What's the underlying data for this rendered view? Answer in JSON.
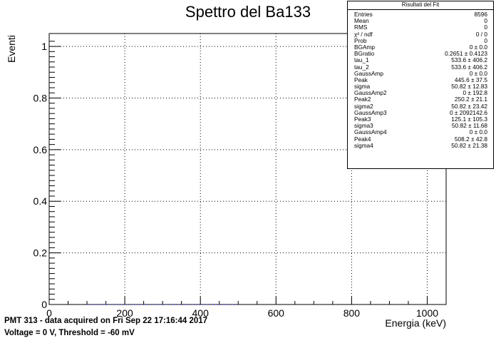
{
  "chart_data": {
    "type": "line",
    "title": "Spettro del Ba133",
    "xlabel": "Energia (keV)",
    "ylabel": "Eventi",
    "xlim": [
      0,
      1050
    ],
    "ylim": [
      0,
      1.05
    ],
    "x_ticks": [
      0,
      200,
      400,
      600,
      800,
      1000
    ],
    "y_ticks": [
      0,
      0.2,
      0.4,
      0.6,
      0.8,
      1
    ],
    "x_tick_labels": [
      "0",
      "200",
      "400",
      "600",
      "800",
      "1000"
    ],
    "y_tick_labels": [
      "0",
      "0.2",
      "0.4",
      "0.6",
      "0.8",
      "1"
    ],
    "grid": true,
    "series": [
      {
        "color": "#0000ff",
        "style": "dotted",
        "x": [
          100,
          500
        ],
        "y": [
          0,
          0
        ]
      }
    ]
  },
  "stats_box": {
    "title": "Risultati del Fit",
    "rows": [
      {
        "label": "Entries",
        "value": "8596"
      },
      {
        "label": "Mean",
        "value": "0"
      },
      {
        "label": "RMS",
        "value": "0"
      },
      {
        "label": "χ² / ndf",
        "value": "0 / 0"
      },
      {
        "label": "Prob",
        "value": "0"
      },
      {
        "label": "BGAmp",
        "value": "0 ± 0.0"
      },
      {
        "label": "BGratio",
        "value": "0.2651 ± 0.4123"
      },
      {
        "label": "tau_1",
        "value": "533.6 ± 406.2"
      },
      {
        "label": "tau_2",
        "value": "533.6 ± 406.2"
      },
      {
        "label": "GaussAmp",
        "value": "0 ± 0.0"
      },
      {
        "label": "Peak",
        "value": "445.6 ± 37.5"
      },
      {
        "label": "sigma",
        "value": "50.82 ± 12.83"
      },
      {
        "label": "GaussAmp2",
        "value": "0 ± 192.8"
      },
      {
        "label": "Peak2",
        "value": "250.2 ± 21.1"
      },
      {
        "label": "sigma2",
        "value": "50.82 ± 23.42"
      },
      {
        "label": "GaussAmp3",
        "value": "0 ± 2092142.6"
      },
      {
        "label": "Peak3",
        "value": "125.1 ± 105.3"
      },
      {
        "label": "sigma3",
        "value": "50.82 ± 11.68"
      },
      {
        "label": "GaussAmp4",
        "value": "0 ± 0.0"
      },
      {
        "label": "Peak4",
        "value": "508.2 ± 42.8"
      },
      {
        "label": "sigma4",
        "value": "50.82 ± 21.38"
      }
    ]
  },
  "footer": {
    "line1": "PMT 313 - data acquired on Fri Sep 22 17:16:44 2017",
    "line2": "Voltage =  0 V, Threshold = -60 mV"
  }
}
